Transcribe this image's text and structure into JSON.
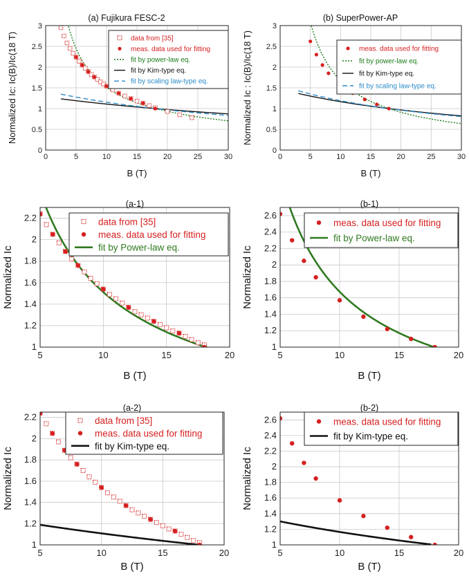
{
  "chart_data": [
    {
      "id": "a",
      "type": "scatter",
      "title": "(a) Fujikura FESC-2",
      "xlabel": "B (T)",
      "ylabel": "Normalized Ic: Ic(B)/Ic(18 T)",
      "xlim": [
        0,
        30
      ],
      "ylim": [
        0,
        3
      ],
      "xticks": [
        "0",
        "5",
        "10",
        "15",
        "20",
        "25",
        "30"
      ],
      "yticks": [
        "0",
        "0.5",
        "1",
        "1.5",
        "2",
        "2.5",
        "3"
      ],
      "grid": true,
      "legend_position": "top-right",
      "series": [
        {
          "name": "data from [35]",
          "kind": "marker",
          "marker": "open-square",
          "color": "#d62020",
          "x": [
            2.5,
            3,
            3.5,
            4,
            4.5,
            5,
            5.5,
            6,
            6.5,
            7,
            7.5,
            8,
            8.5,
            9,
            9.5,
            10,
            11,
            12,
            13,
            14,
            15,
            16,
            17,
            18,
            20,
            22,
            24
          ],
          "y": [
            2.95,
            2.75,
            2.58,
            2.45,
            2.33,
            2.24,
            2.14,
            2.05,
            1.97,
            1.89,
            1.82,
            1.76,
            1.7,
            1.64,
            1.59,
            1.54,
            1.45,
            1.37,
            1.3,
            1.24,
            1.18,
            1.13,
            1.07,
            1.02,
            0.93,
            0.85,
            0.78
          ]
        },
        {
          "name": "meas. data used for fitting",
          "kind": "marker",
          "marker": "dot",
          "color": "#d62020",
          "x": [
            5,
            6,
            7,
            8,
            10,
            12,
            14,
            16,
            18
          ],
          "y": [
            2.24,
            2.05,
            1.89,
            1.76,
            1.54,
            1.37,
            1.24,
            1.13,
            1.0
          ]
        },
        {
          "name": "fit by power-law eq.",
          "kind": "line",
          "dash": "2,2",
          "color": "#1a7a1a",
          "a": 7.49,
          "b": -0.695,
          "x": [
            2.5,
            30
          ]
        },
        {
          "name": "fit by Kim-type eq.",
          "kind": "line",
          "dash": "",
          "color": "#111111",
          "a": 1.0,
          "b": 0.22,
          "c": 18,
          "x": [
            2.5,
            30
          ]
        },
        {
          "name": "fit by scaling law-type eq.",
          "kind": "line",
          "dash": "7,4",
          "color": "#2a8ac8",
          "a": 1.0,
          "b": 0.3,
          "c": 18,
          "x": [
            2.5,
            30
          ]
        }
      ]
    },
    {
      "id": "b",
      "type": "scatter",
      "title": "(b) SuperPower-AP",
      "xlabel": "B (T)",
      "ylabel": "Normalized Ic : Ic(B)/Ic(18 T)",
      "xlim": [
        0,
        30
      ],
      "ylim": [
        0,
        3
      ],
      "xticks": [
        "0",
        "5",
        "10",
        "15",
        "20",
        "25",
        "30"
      ],
      "yticks": [
        "0",
        "0.5",
        "1",
        "1.5",
        "2",
        "2.5",
        "3"
      ],
      "grid": true,
      "legend_position": "top-right",
      "series": [
        {
          "name": "meas. data used for fitting",
          "kind": "marker",
          "marker": "dot",
          "color": "#d62020",
          "x": [
            5,
            6,
            7,
            8,
            10,
            12,
            14,
            16,
            18
          ],
          "y": [
            2.62,
            2.3,
            2.05,
            1.85,
            1.57,
            1.37,
            1.22,
            1.1,
            1.0
          ]
        },
        {
          "name": "fit by power-law eq.",
          "kind": "line",
          "dash": "2,2",
          "color": "#1a7a1a",
          "a": 12.7,
          "b": -0.88,
          "x": [
            3,
            30
          ]
        },
        {
          "name": "fit by Kim-type eq.",
          "kind": "line",
          "dash": "",
          "color": "#111111",
          "a": 1.0,
          "b": 0.32,
          "c": 18,
          "x": [
            3,
            30
          ]
        },
        {
          "name": "fit by scaling law-type eq.",
          "kind": "line",
          "dash": "7,4",
          "color": "#2a8ac8",
          "a": 1.0,
          "b": 0.36,
          "c": 18,
          "x": [
            3,
            30
          ]
        }
      ]
    },
    {
      "id": "a1",
      "type": "scatter",
      "title": "(a-1)",
      "xlabel": "B (T)",
      "ylabel": "Normalized Ic",
      "xlim": [
        5,
        20
      ],
      "ylim": [
        1,
        2.3
      ],
      "xticks": [
        "5",
        "10",
        "15",
        "20"
      ],
      "yticks": [
        "1",
        "1.2",
        "1.4",
        "1.6",
        "1.8",
        "2",
        "2.2"
      ],
      "grid": true,
      "legend_position": "top-right",
      "series": [
        {
          "name": "data from [35]",
          "kind": "marker",
          "marker": "open-square",
          "color": "#d62020",
          "x": [
            5,
            5.5,
            6,
            6.5,
            7,
            7.5,
            8,
            8.5,
            9,
            9.5,
            10,
            10.5,
            11,
            11.5,
            12,
            12.5,
            13,
            13.5,
            14,
            14.5,
            15,
            15.5,
            16,
            16.5,
            17,
            17.5,
            18
          ],
          "y": [
            2.24,
            2.14,
            2.05,
            1.97,
            1.89,
            1.82,
            1.76,
            1.7,
            1.64,
            1.59,
            1.54,
            1.49,
            1.45,
            1.41,
            1.37,
            1.33,
            1.3,
            1.27,
            1.24,
            1.21,
            1.18,
            1.15,
            1.13,
            1.1,
            1.07,
            1.04,
            1.02
          ]
        },
        {
          "name": "meas. data used for fitting",
          "kind": "marker",
          "marker": "dot",
          "color": "#d62020",
          "x": [
            5,
            6,
            7,
            8,
            10,
            12,
            14,
            16,
            18
          ],
          "y": [
            2.24,
            2.05,
            1.89,
            1.76,
            1.54,
            1.37,
            1.24,
            1.13,
            1.0
          ]
        },
        {
          "name": "fit by Power-law eq.",
          "kind": "line",
          "dash": "",
          "color": "#2f7a1f",
          "a": 7.49,
          "b": -0.695,
          "x": [
            5,
            19.4
          ]
        }
      ]
    },
    {
      "id": "b1",
      "type": "scatter",
      "title": "(b-1)",
      "xlabel": "B (T)",
      "ylabel": "Normalized Ic",
      "xlim": [
        5,
        20
      ],
      "ylim": [
        1,
        2.7
      ],
      "xticks": [
        "5",
        "10",
        "15",
        "20"
      ],
      "yticks": [
        "1",
        "1.2",
        "1.4",
        "1.6",
        "1.8",
        "2",
        "2.2",
        "2.4",
        "2.6"
      ],
      "grid": true,
      "legend_position": "top-right",
      "series": [
        {
          "name": "meas. data used for fitting",
          "kind": "marker",
          "marker": "dot",
          "color": "#d62020",
          "x": [
            5,
            6,
            7,
            8,
            10,
            12,
            14,
            16,
            18
          ],
          "y": [
            2.62,
            2.3,
            2.05,
            1.85,
            1.57,
            1.37,
            1.22,
            1.1,
            1.0
          ]
        },
        {
          "name": "fit by Power-law eq.",
          "kind": "line",
          "dash": "",
          "color": "#2f7a1f",
          "a": 12.7,
          "b": -0.88,
          "x": [
            5,
            18
          ]
        }
      ]
    },
    {
      "id": "a2",
      "type": "scatter",
      "title": "(a-2)",
      "xlabel": "B (T)",
      "ylabel": "Normalized Ic",
      "xlim": [
        5,
        20
      ],
      "ylim": [
        1,
        2.25
      ],
      "xticks": [
        "5",
        "10",
        "15",
        "20"
      ],
      "yticks": [
        "1",
        "1.2",
        "1.4",
        "1.6",
        "1.8",
        "2",
        "2.2"
      ],
      "grid": true,
      "legend_position": "top-right",
      "series": [
        {
          "name": "data from [35]",
          "kind": "marker",
          "marker": "open-square",
          "color": "#d62020",
          "x": [
            5,
            5.5,
            6,
            6.5,
            7,
            7.5,
            8,
            8.5,
            9,
            9.5,
            10,
            10.5,
            11,
            11.5,
            12,
            12.5,
            13,
            13.5,
            14,
            14.5,
            15,
            15.5,
            16,
            16.5,
            17,
            17.5,
            18
          ],
          "y": [
            2.24,
            2.14,
            2.05,
            1.97,
            1.89,
            1.82,
            1.76,
            1.7,
            1.64,
            1.59,
            1.54,
            1.49,
            1.45,
            1.41,
            1.37,
            1.33,
            1.3,
            1.27,
            1.24,
            1.21,
            1.18,
            1.15,
            1.13,
            1.1,
            1.07,
            1.04,
            1.02
          ]
        },
        {
          "name": "meas. data used for fitting",
          "kind": "marker",
          "marker": "dot",
          "color": "#d62020",
          "x": [
            5,
            6,
            7,
            8,
            10,
            12,
            14,
            16,
            18
          ],
          "y": [
            2.24,
            2.05,
            1.89,
            1.76,
            1.54,
            1.37,
            1.24,
            1.13,
            1.0
          ]
        },
        {
          "name": "fit by Kim-type eq.",
          "kind": "line",
          "dash": "",
          "color": "#111111",
          "a": 1.0,
          "b": 0.22,
          "c": 18,
          "x": [
            5,
            18
          ]
        }
      ]
    },
    {
      "id": "b2",
      "type": "scatter",
      "title": "(b-2)",
      "xlabel": "B (T)",
      "ylabel": "Normalized Ic",
      "xlim": [
        5,
        20
      ],
      "ylim": [
        1,
        2.7
      ],
      "xticks": [
        "5",
        "10",
        "15",
        "20"
      ],
      "yticks": [
        "1",
        "1.2",
        "1.4",
        "1.6",
        "1.8",
        "2",
        "2.2",
        "2.4",
        "2.6"
      ],
      "grid": true,
      "legend_position": "top-right",
      "series": [
        {
          "name": "meas. data used for fitting",
          "kind": "marker",
          "marker": "dot",
          "color": "#d62020",
          "x": [
            5,
            6,
            7,
            8,
            10,
            12,
            14,
            16,
            18
          ],
          "y": [
            2.62,
            2.3,
            2.05,
            1.85,
            1.57,
            1.37,
            1.22,
            1.1,
            1.0
          ]
        },
        {
          "name": "fit by Kim-type eq.",
          "kind": "line",
          "dash": "",
          "color": "#111111",
          "a": 1.0,
          "b": 0.32,
          "c": 18,
          "x": [
            5,
            17.7
          ]
        }
      ]
    }
  ]
}
